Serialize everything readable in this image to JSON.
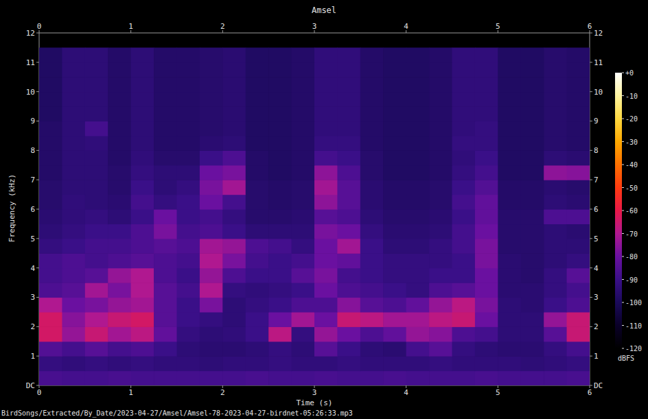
{
  "chart_data": {
    "type": "heatmap",
    "title": "Amsel",
    "x_label": "Time (s)",
    "y_label": "Frequency (kHz)",
    "footnote": "BirdSongs/Extracted/By_Date/2023-04-27/Amsel/Amsel-78-2023-04-27-birdnet-05:26:33.mp3",
    "xlim": [
      0,
      6
    ],
    "xticks": [
      0,
      1,
      2,
      3,
      4,
      5,
      6
    ],
    "ylim": [
      0,
      12
    ],
    "yticks": [
      {
        "value": 0,
        "label": "DC"
      },
      1,
      2,
      3,
      4,
      5,
      6,
      7,
      8,
      9,
      10,
      11,
      12
    ],
    "x_edges": [
      0,
      0.25,
      0.5,
      0.75,
      1,
      1.25,
      1.5,
      1.75,
      2,
      2.25,
      2.5,
      2.75,
      3,
      3.25,
      3.5,
      3.75,
      4,
      4.25,
      4.5,
      4.75,
      5,
      5.25,
      5.5,
      5.75,
      6
    ],
    "y_edges": [
      0,
      0.5,
      1,
      1.5,
      2,
      2.5,
      3,
      3.5,
      4,
      4.5,
      5,
      5.5,
      6,
      6.5,
      7,
      7.5,
      8,
      8.5,
      9,
      9.5,
      10,
      10.5,
      11,
      11.5
    ],
    "cells": [
      [
        -87,
        -88,
        -88,
        -87,
        -88,
        -88,
        -88,
        -88,
        -88,
        -87,
        -88,
        -88,
        -87,
        -88,
        -88,
        -87,
        -88,
        -88,
        -88,
        -87,
        -88,
        -88,
        -88,
        -87
      ],
      [
        -92,
        -93,
        -92,
        -93,
        -92,
        -93,
        -93,
        -94,
        -93,
        -93,
        -92,
        -93,
        -93,
        -92,
        -93,
        -93,
        -93,
        -92,
        -93,
        -93,
        -93,
        -94,
        -93,
        -92
      ],
      [
        -85,
        -88,
        -84,
        -88,
        -86,
        -90,
        -94,
        -95,
        -95,
        -94,
        -92,
        -94,
        -84,
        -90,
        -94,
        -95,
        -88,
        -84,
        -92,
        -94,
        -95,
        -95,
        -92,
        -88
      ],
      [
        -64,
        -74,
        -66,
        -72,
        -68,
        -82,
        -92,
        -94,
        -93,
        -90,
        -68,
        -92,
        -74,
        -80,
        -86,
        -82,
        -74,
        -76,
        -86,
        -88,
        -94,
        -94,
        -84,
        -66
      ],
      [
        -64,
        -76,
        -70,
        -66,
        -64,
        -84,
        -90,
        -92,
        -94,
        -90,
        -80,
        -72,
        -80,
        -66,
        -68,
        -72,
        -72,
        -68,
        -66,
        -80,
        -94,
        -94,
        -74,
        -66
      ],
      [
        -70,
        -80,
        -78,
        -74,
        -72,
        -84,
        -90,
        -78,
        -94,
        -92,
        -90,
        -86,
        -86,
        -76,
        -84,
        -86,
        -82,
        -74,
        -68,
        -78,
        -94,
        -95,
        -90,
        -86
      ],
      [
        -86,
        -84,
        -72,
        -78,
        -70,
        -84,
        -88,
        -70,
        -92,
        -93,
        -92,
        -90,
        -80,
        -86,
        -88,
        -90,
        -92,
        -86,
        -84,
        -80,
        -95,
        -95,
        -92,
        -88
      ],
      [
        -88,
        -86,
        -84,
        -74,
        -70,
        -86,
        -90,
        -74,
        -86,
        -90,
        -90,
        -84,
        -78,
        -88,
        -90,
        -92,
        -92,
        -90,
        -90,
        -80,
        -95,
        -96,
        -92,
        -84
      ],
      [
        -88,
        -86,
        -88,
        -86,
        -84,
        -86,
        -88,
        -70,
        -78,
        -88,
        -90,
        -88,
        -80,
        -82,
        -90,
        -92,
        -92,
        -92,
        -90,
        -78,
        -95,
        -96,
        -94,
        -92
      ],
      [
        -92,
        -90,
        -88,
        -88,
        -86,
        -84,
        -86,
        -72,
        -74,
        -86,
        -88,
        -92,
        -80,
        -72,
        -90,
        -94,
        -94,
        -92,
        -88,
        -78,
        -96,
        -96,
        -94,
        -94
      ],
      [
        -94,
        -92,
        -90,
        -90,
        -86,
        -78,
        -88,
        -86,
        -90,
        -94,
        -94,
        -94,
        -78,
        -80,
        -92,
        -95,
        -95,
        -94,
        -88,
        -80,
        -96,
        -96,
        -94,
        -95
      ],
      [
        -95,
        -93,
        -92,
        -94,
        -90,
        -80,
        -90,
        -88,
        -92,
        -96,
        -96,
        -95,
        -84,
        -86,
        -94,
        -96,
        -96,
        -95,
        -90,
        -82,
        -96,
        -96,
        -86,
        -86
      ],
      [
        -96,
        -93,
        -94,
        -95,
        -88,
        -92,
        -90,
        -80,
        -88,
        -96,
        -97,
        -96,
        -75,
        -84,
        -95,
        -97,
        -97,
        -96,
        -88,
        -82,
        -97,
        -97,
        -94,
        -95
      ],
      [
        -96,
        -94,
        -94,
        -96,
        -90,
        -94,
        -92,
        -78,
        -72,
        -96,
        -97,
        -96,
        -72,
        -84,
        -95,
        -97,
        -97,
        -96,
        -90,
        -85,
        -97,
        -97,
        -95,
        -96
      ],
      [
        -97,
        -94,
        -94,
        -96,
        -92,
        -94,
        -94,
        -80,
        -78,
        -97,
        -98,
        -97,
        -75,
        -86,
        -96,
        -98,
        -98,
        -97,
        -92,
        -88,
        -98,
        -98,
        -75,
        -76
      ],
      [
        -97,
        -94,
        -94,
        -97,
        -93,
        -96,
        -96,
        -90,
        -86,
        -97,
        -98,
        -97,
        -88,
        -90,
        -96,
        -98,
        -98,
        -97,
        -93,
        -90,
        -98,
        -98,
        -94,
        -95
      ],
      [
        -97,
        -94,
        -93,
        -97,
        -94,
        -97,
        -97,
        -95,
        -94,
        -98,
        -98,
        -97,
        -92,
        -92,
        -97,
        -98,
        -98,
        -97,
        -92,
        -92,
        -98,
        -98,
        -96,
        -97
      ],
      [
        -97,
        -94,
        -88,
        -97,
        -94,
        -97,
        -97,
        -96,
        -95,
        -98,
        -98,
        -97,
        -93,
        -93,
        -97,
        -98,
        -98,
        -97,
        -93,
        -92,
        -98,
        -98,
        -96,
        -97
      ],
      [
        -98,
        -94,
        -94,
        -97,
        -94,
        -97,
        -97,
        -96,
        -95,
        -98,
        -98,
        -97,
        -93,
        -93,
        -97,
        -98,
        -98,
        -97,
        -93,
        -93,
        -98,
        -98,
        -96,
        -97
      ],
      [
        -98,
        -94,
        -94,
        -97,
        -94,
        -97,
        -97,
        -96,
        -95,
        -98,
        -98,
        -97,
        -93,
        -93,
        -97,
        -98,
        -98,
        -97,
        -93,
        -93,
        -98,
        -98,
        -96,
        -97
      ],
      [
        -98,
        -94,
        -94,
        -97,
        -94,
        -97,
        -97,
        -96,
        -95,
        -98,
        -98,
        -97,
        -93,
        -93,
        -97,
        -98,
        -98,
        -97,
        -93,
        -93,
        -98,
        -98,
        -96,
        -97
      ],
      [
        -98,
        -94,
        -94,
        -97,
        -94,
        -97,
        -97,
        -96,
        -95,
        -98,
        -98,
        -97,
        -93,
        -93,
        -97,
        -98,
        -98,
        -97,
        -93,
        -93,
        -98,
        -98,
        -96,
        -97
      ],
      [
        -98,
        -94,
        -94,
        -97,
        -94,
        -97,
        -97,
        -96,
        -95,
        -98,
        -98,
        -97,
        -93,
        -93,
        -97,
        -98,
        -98,
        -97,
        -93,
        -93,
        -98,
        -98,
        -96,
        -97
      ]
    ],
    "colorbar": {
      "label": "dBFS",
      "range": [
        -120,
        0
      ],
      "ticks": [
        {
          "value": 0,
          "label": "+0"
        },
        -10,
        -20,
        -30,
        -40,
        -50,
        -60,
        -70,
        -80,
        -90,
        -100,
        -110,
        -120
      ]
    }
  }
}
